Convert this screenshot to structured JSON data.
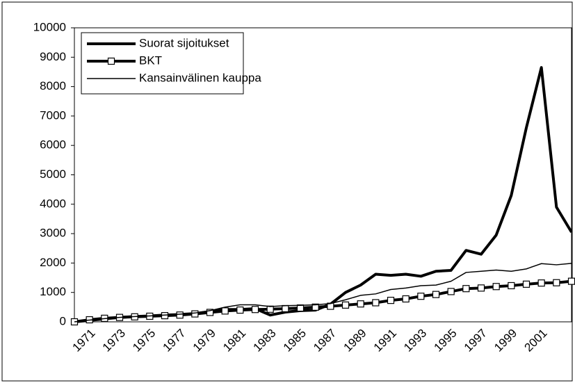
{
  "chart_data": {
    "type": "line",
    "categories": [
      null,
      "1971",
      null,
      "1973",
      null,
      "1975",
      null,
      "1977",
      null,
      "1979",
      null,
      "1981",
      null,
      "1983",
      null,
      "1985",
      null,
      "1987",
      null,
      "1989",
      null,
      "1991",
      null,
      "1993",
      null,
      "1995",
      null,
      "1997",
      null,
      "1999",
      null,
      "2001",
      null,
      null
    ],
    "series": [
      {
        "name": "Suorat sijoitukset",
        "color": "#000000",
        "marker": false,
        "width": 4,
        "values": [
          0,
          50,
          100,
          150,
          180,
          200,
          230,
          250,
          280,
          350,
          420,
          420,
          450,
          230,
          330,
          380,
          400,
          600,
          1000,
          1250,
          1620,
          1580,
          1620,
          1550,
          1720,
          1750,
          2430,
          2300,
          2950,
          4300,
          6600,
          8650,
          3900,
          3050
        ]
      },
      {
        "name": "BKT",
        "color": "#000000",
        "marker": true,
        "width": 4,
        "values": [
          0,
          70,
          120,
          150,
          170,
          190,
          210,
          230,
          270,
          320,
          370,
          400,
          420,
          430,
          450,
          470,
          500,
          530,
          570,
          610,
          650,
          730,
          780,
          870,
          930,
          1030,
          1130,
          1150,
          1200,
          1230,
          1280,
          1320,
          1330,
          1380
        ]
      },
      {
        "name": "Kansainvälinen kauppa",
        "color": "#000000",
        "marker": false,
        "width": 1.5,
        "values": [
          0,
          60,
          110,
          150,
          180,
          200,
          230,
          260,
          300,
          380,
          500,
          580,
          580,
          520,
          550,
          560,
          580,
          620,
          750,
          900,
          950,
          1100,
          1150,
          1230,
          1250,
          1380,
          1680,
          1720,
          1760,
          1720,
          1800,
          1980,
          1940,
          1990
        ]
      }
    ],
    "ylim": [
      0,
      10000
    ],
    "yticks": [
      0,
      1000,
      2000,
      3000,
      4000,
      5000,
      6000,
      7000,
      8000,
      9000,
      10000
    ],
    "grid": false,
    "legend": "upper-left"
  }
}
